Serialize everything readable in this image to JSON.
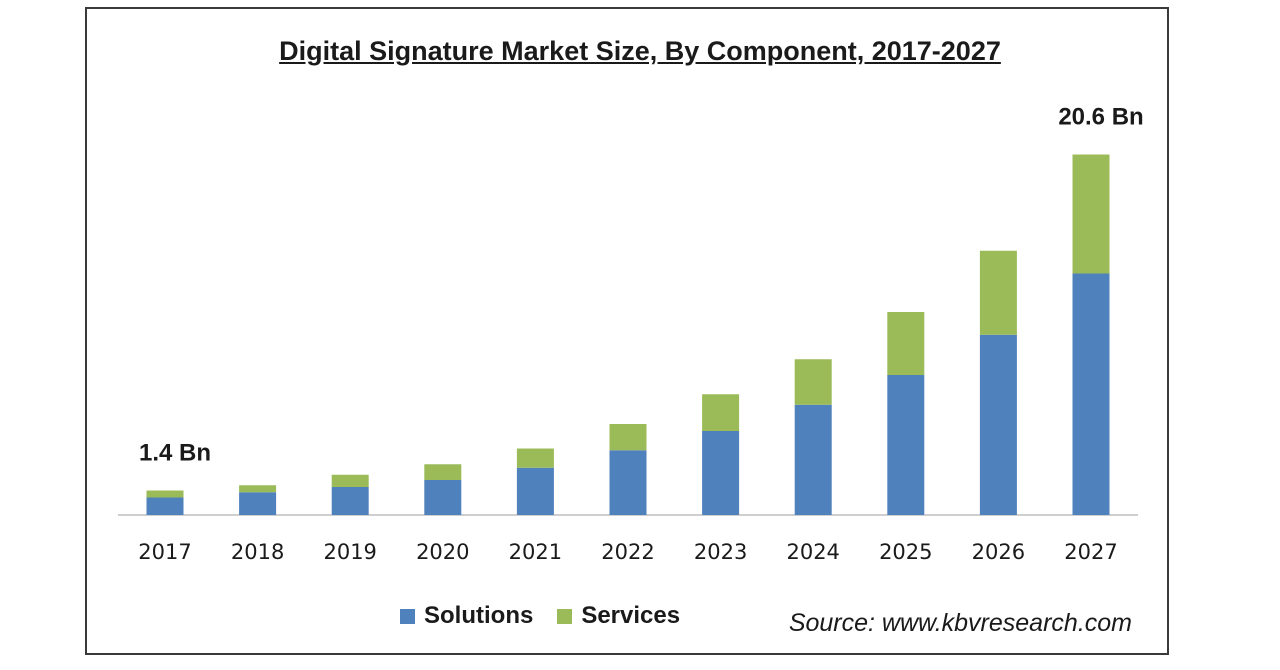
{
  "chart_data": {
    "type": "bar",
    "stacked": true,
    "title": "Digital Signature Market Size, By Component, 2017-2027",
    "categories": [
      "2017",
      "2018",
      "2019",
      "2020",
      "2021",
      "2022",
      "2023",
      "2024",
      "2025",
      "2026",
      "2027"
    ],
    "series": [
      {
        "name": "Solutions",
        "color": "#4f81bd",
        "values": [
          1.0,
          1.3,
          1.6,
          2.0,
          2.7,
          3.7,
          4.8,
          6.3,
          8.0,
          10.3,
          13.8
        ]
      },
      {
        "name": "Services",
        "color": "#9bbb59",
        "values": [
          0.4,
          0.4,
          0.7,
          0.9,
          1.1,
          1.5,
          2.1,
          2.6,
          3.6,
          4.8,
          6.8
        ]
      }
    ],
    "annotations": [
      {
        "category": "2017",
        "text": "1.4 Bn"
      },
      {
        "category": "2027",
        "text": "20.6 Bn"
      }
    ],
    "ylim": [
      0,
      24
    ],
    "grid": false,
    "legend": "bottom",
    "source": "Source: www.kbvresearch.com"
  }
}
